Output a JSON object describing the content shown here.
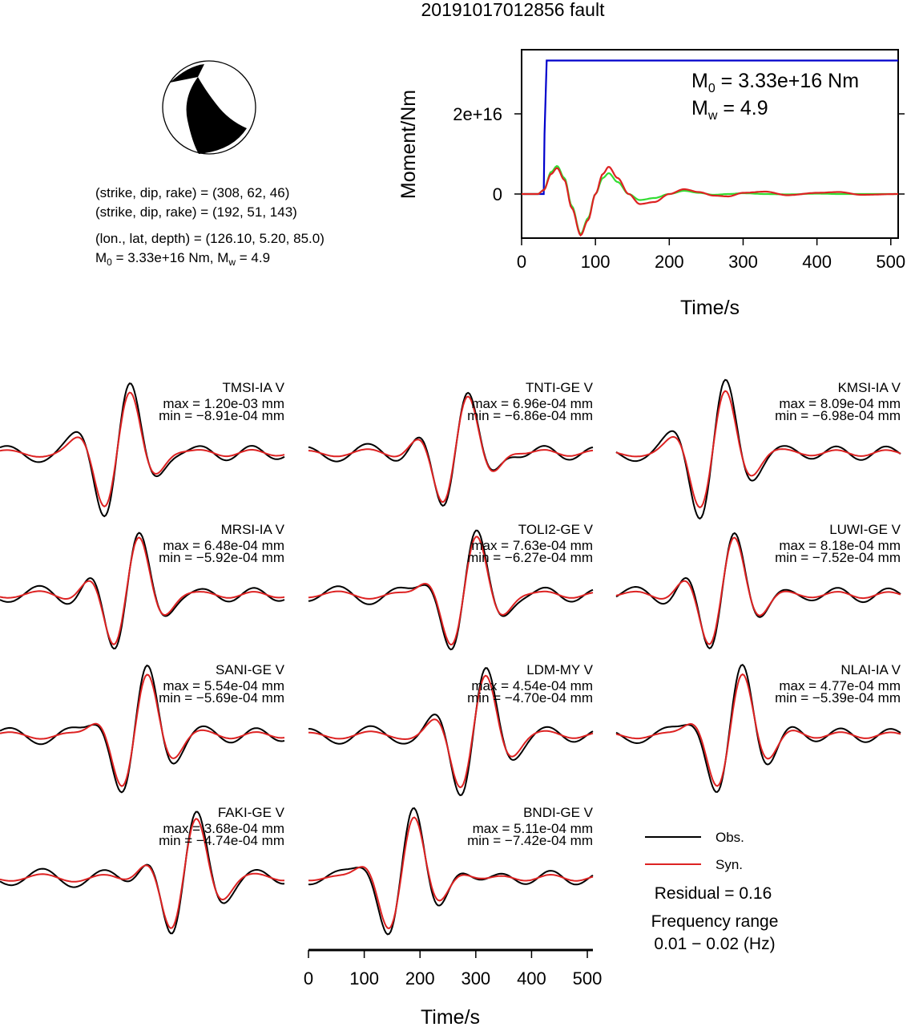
{
  "title": "20191017012856 fault",
  "beachball": {
    "fill": "#000000"
  },
  "source_info": {
    "plane1": "(strike, dip, rake) = (308, 62, 46)",
    "plane2": "(strike, dip, rake) = (192, 51, 143)",
    "location": "(lon., lat, depth) = (126.10, 5.20, 85.0)",
    "m0_prefix": "M",
    "m0_sub": "0",
    "m0_rest": " = 3.33e+16 Nm, M",
    "mw_sub": "w",
    "mw_rest": " = 4.9"
  },
  "chart_data": [
    {
      "type": "line",
      "title": "",
      "xlabel": "Time/s",
      "ylabel": "Moment/Nm",
      "xlim": [
        0,
        510
      ],
      "ylim": [
        -1.1e+16,
        3.6e+16
      ],
      "xticks": [
        0,
        100,
        200,
        300,
        400,
        500
      ],
      "xtick_labels": [
        "0",
        "100",
        "200",
        "300",
        "400",
        "500"
      ],
      "yticks": [
        0,
        2e+16
      ],
      "ytick_labels": [
        "0",
        "2e+16"
      ],
      "annotation_m0": {
        "prefix": "M",
        "sub": "0",
        "rest": " = 3.33e+16 Nm"
      },
      "annotation_mw": {
        "prefix": "M",
        "sub": "w",
        "rest": " = 4.9"
      },
      "series": [
        {
          "color": "#0000cc",
          "x": [
            0,
            30,
            31,
            34,
            510
          ],
          "y": [
            0,
            0,
            1.5e+16,
            3.33e+16,
            3.33e+16
          ]
        },
        {
          "color": "#33dd33",
          "x": [
            0,
            22,
            30,
            40,
            48,
            58,
            68,
            80,
            90,
            100,
            110,
            118,
            130,
            145,
            160,
            180,
            200,
            220,
            240,
            260,
            280,
            300,
            330,
            360,
            400,
            430,
            460,
            510
          ],
          "y": [
            0,
            0,
            1000000000000000.0,
            5500000000000000.0,
            7000000000000000.0,
            4000000000000000.0,
            -3000000000000000.0,
            -1e+16,
            -6000000000000000.0,
            0,
            4000000000000000.0,
            5200000000000000.0,
            3000000000000000.0,
            0,
            -1500000000000000.0,
            -1000000000000000.0,
            0,
            800000000000000.0,
            300000000000000.0,
            -200000000000000.0,
            0,
            200000000000000.0,
            0,
            -100000000000000.0,
            100000000000000.0,
            0,
            0,
            0
          ]
        },
        {
          "color": "#dd2222",
          "x": [
            0,
            22,
            30,
            40,
            48,
            58,
            68,
            80,
            90,
            100,
            110,
            118,
            130,
            145,
            160,
            180,
            200,
            220,
            240,
            260,
            280,
            300,
            330,
            360,
            400,
            430,
            460,
            510
          ],
          "y": [
            0,
            0,
            1000000000000000.0,
            5000000000000000.0,
            6500000000000000.0,
            3500000000000000.0,
            -3500000000000000.0,
            -1.03e+16,
            -6500000000000000.0,
            0,
            5000000000000000.0,
            6800000000000000.0,
            4000000000000000.0,
            0,
            -2500000000000000.0,
            -2000000000000000.0,
            0,
            1200000000000000.0,
            500000000000000.0,
            -400000000000000.0,
            -600000000000000.0,
            300000000000000.0,
            600000000000000.0,
            -300000000000000.0,
            300000000000000.0,
            500000000000000.0,
            -200000000000000.0,
            0
          ]
        }
      ]
    },
    {
      "type": "line",
      "xlabel": "Time/s",
      "xlim": [
        0,
        510
      ],
      "xticks": [
        0,
        100,
        200,
        300,
        400,
        500
      ],
      "xtick_labels": [
        "0",
        "100",
        "200",
        "300",
        "400",
        "500"
      ],
      "series_names": [
        "Obs.",
        "Syn."
      ],
      "series_colors": [
        "#000000",
        "#dd2222"
      ],
      "traces": [
        {
          "name": "TMSI-IA V",
          "max": "max = 1.20e-03 mm",
          "min": "min = −8.91e-04 mm"
        },
        {
          "name": "TNTI-GE V",
          "max": "max = 6.96e-04 mm",
          "min": "min = −6.86e-04 mm"
        },
        {
          "name": "KMSI-IA V",
          "max": "max = 8.09e-04 mm",
          "min": "min = −6.98e-04 mm"
        },
        {
          "name": "MRSI-IA V",
          "max": "max = 6.48e-04 mm",
          "min": "min = −5.92e-04 mm"
        },
        {
          "name": "TOLI2-GE V",
          "max": "max = 7.63e-04 mm",
          "min": "min = −6.27e-04 mm"
        },
        {
          "name": "LUWI-GE V",
          "max": "max = 8.18e-04 mm",
          "min": "min = −7.52e-04 mm"
        },
        {
          "name": "SANI-GE V",
          "max": "max = 5.54e-04 mm",
          "min": "min = −5.69e-04 mm"
        },
        {
          "name": "LDM-MY V",
          "max": "max = 4.54e-04 mm",
          "min": "min = −4.70e-04 mm"
        },
        {
          "name": "NLAI-IA V",
          "max": "max = 4.77e-04 mm",
          "min": "min = −5.39e-04 mm"
        },
        {
          "name": "FAKI-GE V",
          "max": "max = 3.68e-04 mm",
          "min": "min = −4.74e-04 mm"
        },
        {
          "name": "BNDI-GE V",
          "max": "max = 5.11e-04 mm",
          "min": "min = −7.42e-04 mm"
        }
      ]
    }
  ],
  "legend": {
    "obs": "Obs.",
    "syn": "Syn."
  },
  "residual": "Residual = 0.16",
  "freq_label": "Frequency range",
  "freq_range": "0.01 − 0.02 (Hz)"
}
